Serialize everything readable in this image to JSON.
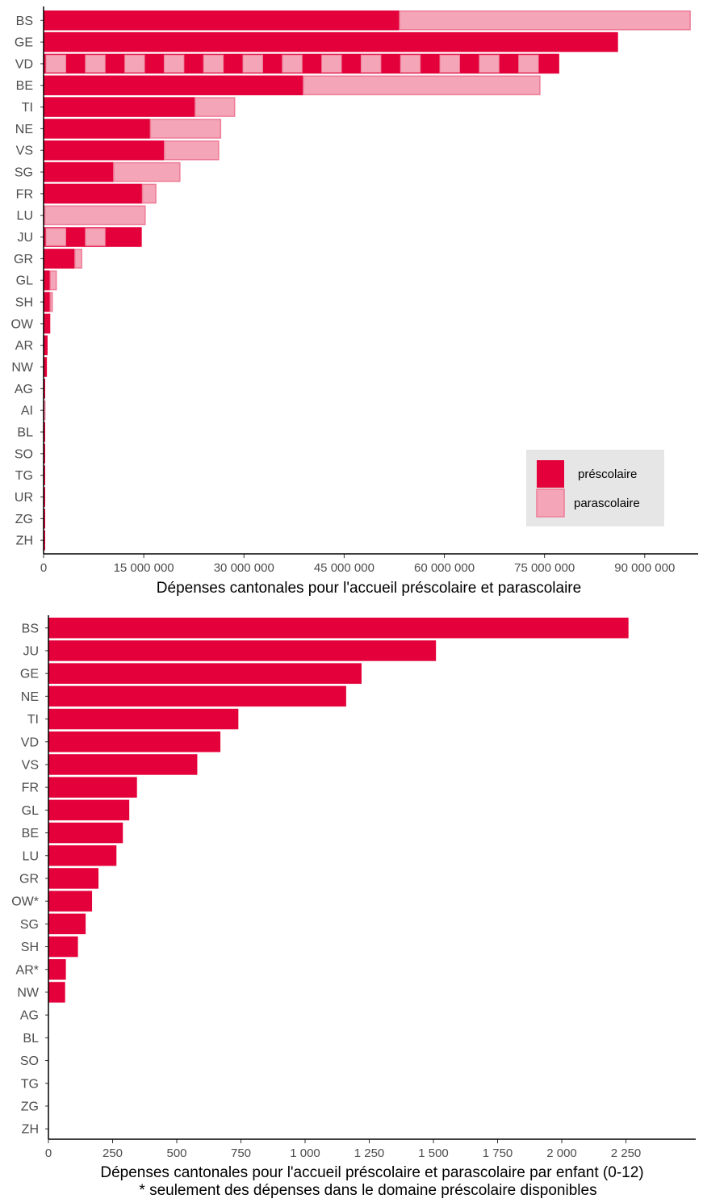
{
  "colors": {
    "prescolaire": "#e4003a",
    "parascolaire": "#f4a6b8",
    "parascolaire_border": "#ee7b97",
    "axis": "#000000",
    "legend_bg": "#e6e6e6",
    "text": "#4d4d4d"
  },
  "chart_data": [
    {
      "type": "bar",
      "orientation": "horizontal",
      "stacked": true,
      "xlabel": "Dépenses cantonales pour l'accueil préscolaire et parascolaire",
      "ylabel": "",
      "xlim": [
        0,
        98000000
      ],
      "xticks": [
        0,
        15000000,
        30000000,
        45000000,
        60000000,
        75000000,
        90000000
      ],
      "xtick_labels": [
        "0",
        "15 000 000",
        "30 000 000",
        "45 000 000",
        "60 000 000",
        "75 000 000",
        "90 000 000"
      ],
      "categories": [
        "BS",
        "GE",
        "VD",
        "BE",
        "TI",
        "NE",
        "VS",
        "SG",
        "FR",
        "LU",
        "JU",
        "GR",
        "GL",
        "SH",
        "OW",
        "AR",
        "NW",
        "AG",
        "AI",
        "BL",
        "SO",
        "TG",
        "UR",
        "ZG",
        "ZH"
      ],
      "series": [
        {
          "name": "préscolaire",
          "values": [
            53300000,
            86000000,
            77200000,
            38900000,
            22700000,
            16000000,
            18100000,
            10500000,
            14800000,
            200000,
            14700000,
            4700000,
            1000000,
            1000000,
            1000000,
            600000,
            500000,
            200000,
            0,
            200000,
            200000,
            200000,
            200000,
            200000,
            200000
          ]
        },
        {
          "name": "parascolaire",
          "values": [
            43500000,
            0,
            0,
            35400000,
            5900000,
            10500000,
            8100000,
            9900000,
            2000000,
            15000000,
            0,
            1000000,
            900000,
            300000,
            0,
            0,
            0,
            0,
            200000,
            0,
            0,
            0,
            0,
            0,
            0
          ]
        }
      ],
      "mixed_categories": [
        "VD",
        "JU"
      ],
      "legend": {
        "position": "bottom-right",
        "entries": [
          "préscolaire",
          "parascolaire"
        ]
      }
    },
    {
      "type": "bar",
      "orientation": "horizontal",
      "xlabel": "Dépenses cantonales pour l'accueil préscolaire et parascolaire par enfant (0-12)",
      "note": "* seulement des dépenses dans le domaine préscolaire disponibles",
      "ylabel": "",
      "xlim": [
        0,
        2500
      ],
      "xticks": [
        0,
        250,
        500,
        750,
        1000,
        1250,
        1500,
        1750,
        2000,
        2250
      ],
      "xtick_labels": [
        "0",
        "250",
        "500",
        "750",
        "1 000",
        "1 250",
        "1 500",
        "1 750",
        "2 000",
        "2 250"
      ],
      "categories": [
        "BS",
        "JU",
        "GE",
        "NE",
        "TI",
        "VD",
        "VS",
        "FR",
        "GL",
        "BE",
        "LU",
        "GR",
        "OW*",
        "SG",
        "SH",
        "AR*",
        "NW",
        "AG",
        "BL",
        "SO",
        "TG",
        "ZG",
        "ZH"
      ],
      "values": [
        2260,
        1510,
        1220,
        1160,
        740,
        670,
        580,
        345,
        315,
        290,
        265,
        195,
        170,
        145,
        115,
        68,
        65,
        0,
        0,
        0,
        0,
        0,
        0
      ]
    }
  ]
}
